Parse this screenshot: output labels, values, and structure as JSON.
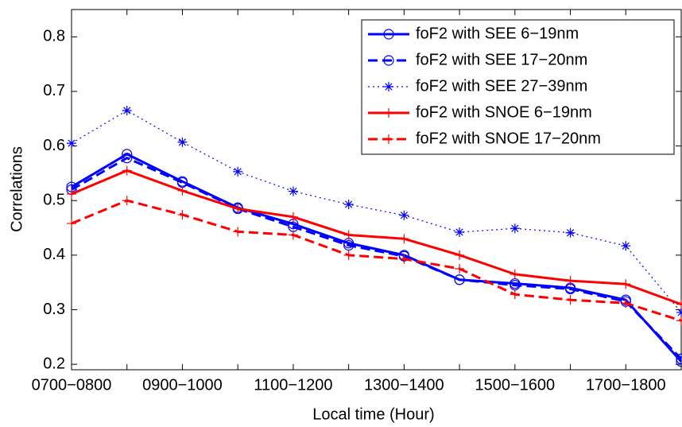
{
  "chart_data": {
    "type": "line",
    "xlabel": "Local time (Hour)",
    "ylabel": "Correlations",
    "categories": [
      "0700−0800",
      null,
      "0900−1000",
      null,
      "1100−1200",
      null,
      "1300−1400",
      null,
      "1500−1600",
      null,
      "1700−1800",
      null
    ],
    "ylim": [
      0.19,
      0.85
    ],
    "yticks": [
      0.2,
      0.3,
      0.4,
      0.5,
      0.6,
      0.7,
      0.8
    ],
    "legend": "upper right",
    "series": [
      {
        "name": "foF2 with SEE 6−19nm",
        "color": "#0000ff",
        "linestyle": "solid",
        "marker": "circle",
        "values": [
          0.525,
          0.585,
          0.535,
          0.487,
          0.457,
          0.422,
          0.4,
          0.355,
          0.348,
          0.34,
          0.318,
          0.205
        ]
      },
      {
        "name": "foF2 with SEE 17−20nm",
        "color": "#0000ff",
        "linestyle": "dashed",
        "marker": "circle",
        "values": [
          0.52,
          0.578,
          0.533,
          0.485,
          0.452,
          0.418,
          0.398,
          0.355,
          0.345,
          0.338,
          0.315,
          0.21
        ]
      },
      {
        "name": "foF2 with SEE 27−39nm",
        "color": "#0000ff",
        "linestyle": "dotted",
        "marker": "star",
        "values": [
          0.605,
          0.665,
          0.607,
          0.553,
          0.517,
          0.493,
          0.473,
          0.442,
          0.449,
          0.441,
          0.417,
          0.295
        ]
      },
      {
        "name": "foF2 with SNOE 6−19nm",
        "color": "#ff0000",
        "linestyle": "solid",
        "marker": "plus",
        "values": [
          0.512,
          0.555,
          0.518,
          0.485,
          0.47,
          0.437,
          0.43,
          0.4,
          0.365,
          0.353,
          0.347,
          0.31
        ]
      },
      {
        "name": "foF2 with SNOE 17−20nm",
        "color": "#ff0000",
        "linestyle": "dashed",
        "marker": "plus",
        "values": [
          0.458,
          0.5,
          0.474,
          0.443,
          0.437,
          0.4,
          0.393,
          0.375,
          0.328,
          0.318,
          0.312,
          0.28
        ]
      }
    ]
  }
}
